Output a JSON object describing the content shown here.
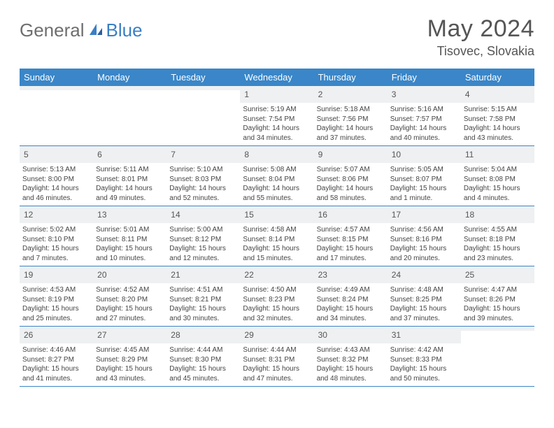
{
  "logo": {
    "word1": "General",
    "word2": "Blue"
  },
  "header": {
    "title": "May 2024",
    "location": "Tisovec, Slovakia"
  },
  "colors": {
    "header_bar": "#3a86c8",
    "daynum_bg": "#eef0f1",
    "border": "#3a86c8",
    "title_color": "#555555",
    "text_color": "#444444",
    "logo_gray": "#6e6e6e",
    "logo_blue": "#3a7fc4"
  },
  "day_names": [
    "Sunday",
    "Monday",
    "Tuesday",
    "Wednesday",
    "Thursday",
    "Friday",
    "Saturday"
  ],
  "weeks": [
    [
      {
        "blank": true
      },
      {
        "blank": true
      },
      {
        "blank": true
      },
      {
        "day": "1",
        "sunrise": "Sunrise: 5:19 AM",
        "sunset": "Sunset: 7:54 PM",
        "daylight1": "Daylight: 14 hours",
        "daylight2": "and 34 minutes."
      },
      {
        "day": "2",
        "sunrise": "Sunrise: 5:18 AM",
        "sunset": "Sunset: 7:56 PM",
        "daylight1": "Daylight: 14 hours",
        "daylight2": "and 37 minutes."
      },
      {
        "day": "3",
        "sunrise": "Sunrise: 5:16 AM",
        "sunset": "Sunset: 7:57 PM",
        "daylight1": "Daylight: 14 hours",
        "daylight2": "and 40 minutes."
      },
      {
        "day": "4",
        "sunrise": "Sunrise: 5:15 AM",
        "sunset": "Sunset: 7:58 PM",
        "daylight1": "Daylight: 14 hours",
        "daylight2": "and 43 minutes."
      }
    ],
    [
      {
        "day": "5",
        "sunrise": "Sunrise: 5:13 AM",
        "sunset": "Sunset: 8:00 PM",
        "daylight1": "Daylight: 14 hours",
        "daylight2": "and 46 minutes."
      },
      {
        "day": "6",
        "sunrise": "Sunrise: 5:11 AM",
        "sunset": "Sunset: 8:01 PM",
        "daylight1": "Daylight: 14 hours",
        "daylight2": "and 49 minutes."
      },
      {
        "day": "7",
        "sunrise": "Sunrise: 5:10 AM",
        "sunset": "Sunset: 8:03 PM",
        "daylight1": "Daylight: 14 hours",
        "daylight2": "and 52 minutes."
      },
      {
        "day": "8",
        "sunrise": "Sunrise: 5:08 AM",
        "sunset": "Sunset: 8:04 PM",
        "daylight1": "Daylight: 14 hours",
        "daylight2": "and 55 minutes."
      },
      {
        "day": "9",
        "sunrise": "Sunrise: 5:07 AM",
        "sunset": "Sunset: 8:06 PM",
        "daylight1": "Daylight: 14 hours",
        "daylight2": "and 58 minutes."
      },
      {
        "day": "10",
        "sunrise": "Sunrise: 5:05 AM",
        "sunset": "Sunset: 8:07 PM",
        "daylight1": "Daylight: 15 hours",
        "daylight2": "and 1 minute."
      },
      {
        "day": "11",
        "sunrise": "Sunrise: 5:04 AM",
        "sunset": "Sunset: 8:08 PM",
        "daylight1": "Daylight: 15 hours",
        "daylight2": "and 4 minutes."
      }
    ],
    [
      {
        "day": "12",
        "sunrise": "Sunrise: 5:02 AM",
        "sunset": "Sunset: 8:10 PM",
        "daylight1": "Daylight: 15 hours",
        "daylight2": "and 7 minutes."
      },
      {
        "day": "13",
        "sunrise": "Sunrise: 5:01 AM",
        "sunset": "Sunset: 8:11 PM",
        "daylight1": "Daylight: 15 hours",
        "daylight2": "and 10 minutes."
      },
      {
        "day": "14",
        "sunrise": "Sunrise: 5:00 AM",
        "sunset": "Sunset: 8:12 PM",
        "daylight1": "Daylight: 15 hours",
        "daylight2": "and 12 minutes."
      },
      {
        "day": "15",
        "sunrise": "Sunrise: 4:58 AM",
        "sunset": "Sunset: 8:14 PM",
        "daylight1": "Daylight: 15 hours",
        "daylight2": "and 15 minutes."
      },
      {
        "day": "16",
        "sunrise": "Sunrise: 4:57 AM",
        "sunset": "Sunset: 8:15 PM",
        "daylight1": "Daylight: 15 hours",
        "daylight2": "and 17 minutes."
      },
      {
        "day": "17",
        "sunrise": "Sunrise: 4:56 AM",
        "sunset": "Sunset: 8:16 PM",
        "daylight1": "Daylight: 15 hours",
        "daylight2": "and 20 minutes."
      },
      {
        "day": "18",
        "sunrise": "Sunrise: 4:55 AM",
        "sunset": "Sunset: 8:18 PM",
        "daylight1": "Daylight: 15 hours",
        "daylight2": "and 23 minutes."
      }
    ],
    [
      {
        "day": "19",
        "sunrise": "Sunrise: 4:53 AM",
        "sunset": "Sunset: 8:19 PM",
        "daylight1": "Daylight: 15 hours",
        "daylight2": "and 25 minutes."
      },
      {
        "day": "20",
        "sunrise": "Sunrise: 4:52 AM",
        "sunset": "Sunset: 8:20 PM",
        "daylight1": "Daylight: 15 hours",
        "daylight2": "and 27 minutes."
      },
      {
        "day": "21",
        "sunrise": "Sunrise: 4:51 AM",
        "sunset": "Sunset: 8:21 PM",
        "daylight1": "Daylight: 15 hours",
        "daylight2": "and 30 minutes."
      },
      {
        "day": "22",
        "sunrise": "Sunrise: 4:50 AM",
        "sunset": "Sunset: 8:23 PM",
        "daylight1": "Daylight: 15 hours",
        "daylight2": "and 32 minutes."
      },
      {
        "day": "23",
        "sunrise": "Sunrise: 4:49 AM",
        "sunset": "Sunset: 8:24 PM",
        "daylight1": "Daylight: 15 hours",
        "daylight2": "and 34 minutes."
      },
      {
        "day": "24",
        "sunrise": "Sunrise: 4:48 AM",
        "sunset": "Sunset: 8:25 PM",
        "daylight1": "Daylight: 15 hours",
        "daylight2": "and 37 minutes."
      },
      {
        "day": "25",
        "sunrise": "Sunrise: 4:47 AM",
        "sunset": "Sunset: 8:26 PM",
        "daylight1": "Daylight: 15 hours",
        "daylight2": "and 39 minutes."
      }
    ],
    [
      {
        "day": "26",
        "sunrise": "Sunrise: 4:46 AM",
        "sunset": "Sunset: 8:27 PM",
        "daylight1": "Daylight: 15 hours",
        "daylight2": "and 41 minutes."
      },
      {
        "day": "27",
        "sunrise": "Sunrise: 4:45 AM",
        "sunset": "Sunset: 8:29 PM",
        "daylight1": "Daylight: 15 hours",
        "daylight2": "and 43 minutes."
      },
      {
        "day": "28",
        "sunrise": "Sunrise: 4:44 AM",
        "sunset": "Sunset: 8:30 PM",
        "daylight1": "Daylight: 15 hours",
        "daylight2": "and 45 minutes."
      },
      {
        "day": "29",
        "sunrise": "Sunrise: 4:44 AM",
        "sunset": "Sunset: 8:31 PM",
        "daylight1": "Daylight: 15 hours",
        "daylight2": "and 47 minutes."
      },
      {
        "day": "30",
        "sunrise": "Sunrise: 4:43 AM",
        "sunset": "Sunset: 8:32 PM",
        "daylight1": "Daylight: 15 hours",
        "daylight2": "and 48 minutes."
      },
      {
        "day": "31",
        "sunrise": "Sunrise: 4:42 AM",
        "sunset": "Sunset: 8:33 PM",
        "daylight1": "Daylight: 15 hours",
        "daylight2": "and 50 minutes."
      },
      {
        "blank": true
      }
    ]
  ]
}
